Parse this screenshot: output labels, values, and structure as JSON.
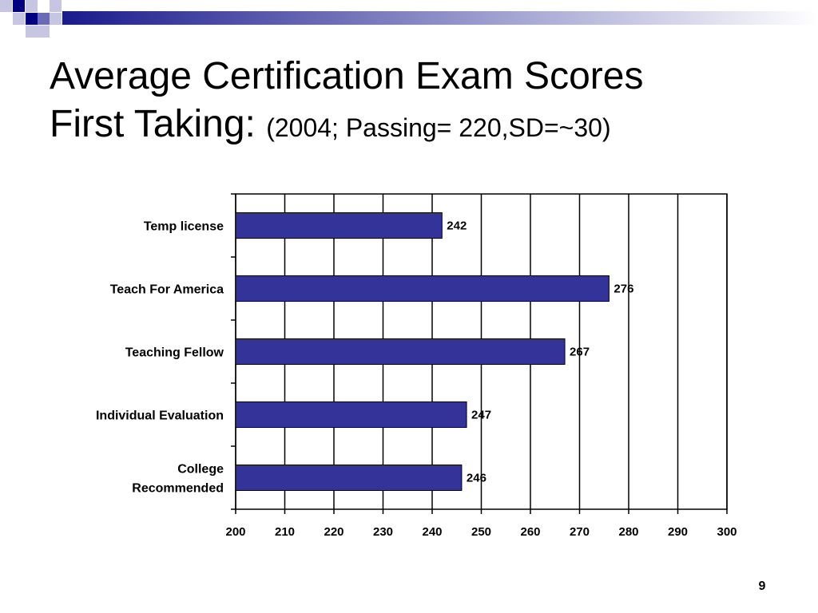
{
  "slide": {
    "title_line1": "Average Certification Exam Scores",
    "title_line2": "First Taking:",
    "subtitle": "(2004; Passing= 220,SD=~30)",
    "page_number": "9",
    "colors": {
      "bar": "#333399",
      "deco_dark": "#000080",
      "deco_mid": "#6B6BB5",
      "deco_light": "#C6C6E2"
    }
  },
  "chart_data": {
    "type": "bar",
    "orientation": "horizontal",
    "categories": [
      [
        "Temp license"
      ],
      [
        "Teach For America"
      ],
      [
        "Teaching Fellow"
      ],
      [
        "Individual Evaluation"
      ],
      [
        "College",
        "Recommended"
      ]
    ],
    "values": [
      242,
      276,
      267,
      247,
      246
    ],
    "data_labels": [
      "242",
      "276",
      "267",
      "247",
      "246"
    ],
    "xlim": [
      200,
      300
    ],
    "xticks": [
      200,
      210,
      220,
      230,
      240,
      250,
      260,
      270,
      280,
      290,
      300
    ],
    "xlabel": "",
    "ylabel": "",
    "grid": "vertical",
    "legend": "none",
    "bar_color": "#333399"
  }
}
